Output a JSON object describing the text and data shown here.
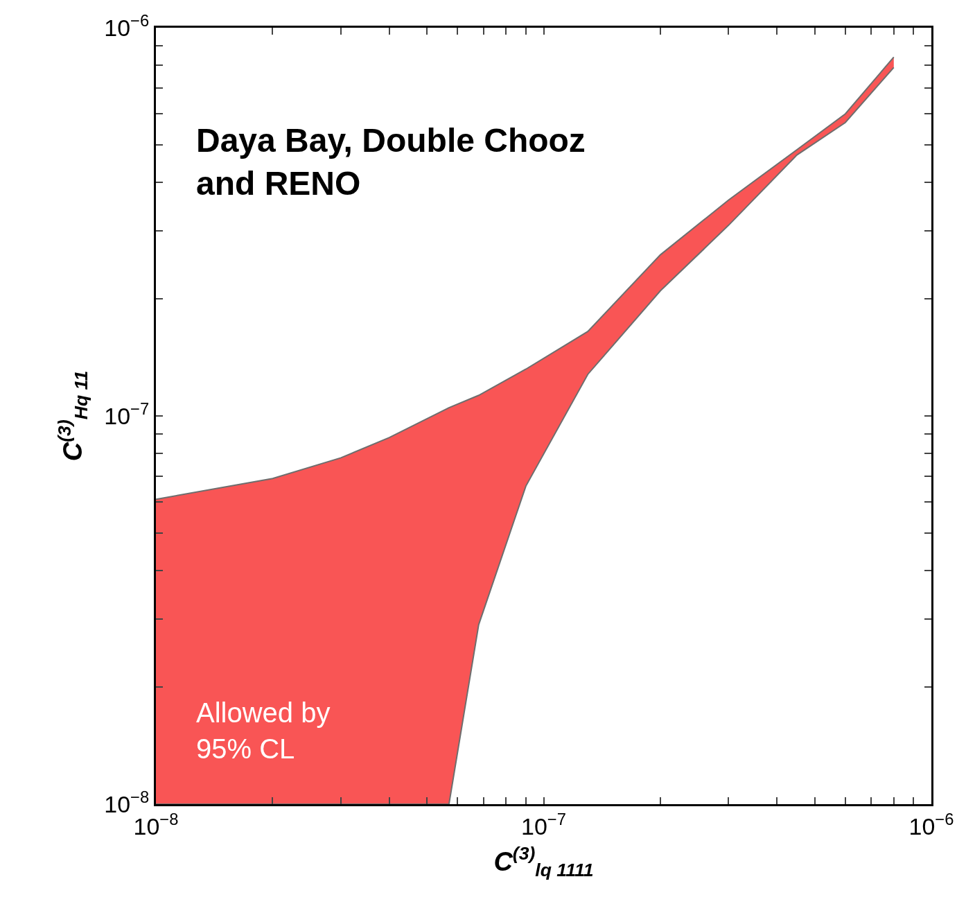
{
  "chart_data": {
    "type": "area",
    "xlabel": "C$^{(3)}$$_{lq 1111}$",
    "ylabel": "C$^{(3)}$$_{Hq 11}$",
    "annotations": [
      "Daya Bay, Double Chooz\nand RENO",
      "Allowed by\n95% CL"
    ],
    "log": "xy",
    "x": [
      1e-08,
      2e-08,
      3e-08,
      4e-08,
      5.7e-08,
      6.8e-08,
      9e-08,
      1.3e-07,
      2e-07,
      3e-07,
      4.5e-07,
      6e-07,
      8e-07
    ],
    "series": [
      {
        "type": "line",
        "color": "#6e6e6e",
        "values": [
          1e-08,
          1e-08,
          1e-08,
          1e-08,
          1e-08,
          2.9e-08,
          6.6e-08,
          1.28e-07,
          2.1e-07,
          3.1e-07,
          4.7e-07,
          5.7e-07,
          7.9e-07
        ]
      },
      {
        "color": "#f95555",
        "values": [
          6.1e-08,
          6.9e-08,
          7.8e-08,
          8.8e-08,
          1.05e-07,
          1.13e-07,
          1.32e-07,
          1.65e-07,
          2.6e-07,
          3.6e-07,
          4.85e-07,
          6e-07,
          8.4e-07
        ]
      }
    ],
    "xlim": [
      1e-08,
      1e-06
    ],
    "ylim": [
      1e-08,
      1e-06
    ],
    "xticks": [
      {
        "value": 1e-08,
        "label": "10$^{−8}$"
      },
      {
        "value": 2e-08,
        "label": null
      },
      {
        "value": 3e-08,
        "label": null
      },
      {
        "value": 4e-08,
        "label": null
      },
      {
        "value": 5e-08,
        "label": null
      },
      {
        "value": 6e-08,
        "label": null
      },
      {
        "value": 7e-08,
        "label": null
      },
      {
        "value": 8e-08,
        "label": null
      },
      {
        "value": 9e-08,
        "label": null
      },
      {
        "value": 1e-07,
        "label": "10$^{−7}$"
      },
      {
        "value": 2e-07,
        "label": null
      },
      {
        "value": 3e-07,
        "label": null
      },
      {
        "value": 4e-07,
        "label": null
      },
      {
        "value": 5e-07,
        "label": null
      },
      {
        "value": 6e-07,
        "label": null
      },
      {
        "value": 7e-07,
        "label": null
      },
      {
        "value": 8e-07,
        "label": null
      },
      {
        "value": 9e-07,
        "label": null
      },
      {
        "value": 1e-06,
        "label": "10$^{−6}$"
      }
    ],
    "yticks": [
      {
        "value": 1e-08,
        "label": "10$^{−8}$"
      },
      {
        "value": 2e-08,
        "label": null
      },
      {
        "value": 3e-08,
        "label": null
      },
      {
        "value": 4e-08,
        "label": null
      },
      {
        "value": 5e-08,
        "label": null
      },
      {
        "value": 6e-08,
        "label": null
      },
      {
        "value": 7e-08,
        "label": null
      },
      {
        "value": 8e-08,
        "label": null
      },
      {
        "value": 9e-08,
        "label": null
      },
      {
        "value": 1e-07,
        "label": "10$^{−7}$"
      },
      {
        "value": 2e-07,
        "label": null
      },
      {
        "value": 3e-07,
        "label": null
      },
      {
        "value": 4e-07,
        "label": null
      },
      {
        "value": 5e-07,
        "label": null
      },
      {
        "value": 6e-07,
        "label": null
      },
      {
        "value": 7e-07,
        "label": null
      },
      {
        "value": 8e-07,
        "label": null
      },
      {
        "value": 9e-07,
        "label": null
      },
      {
        "value": 1e-06,
        "label": "10$^{−6}$"
      }
    ]
  }
}
